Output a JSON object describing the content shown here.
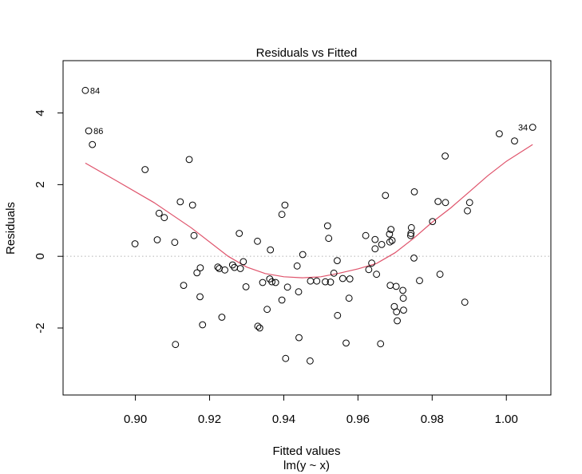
{
  "chart_data": {
    "type": "scatter",
    "title": "Residuals vs Fitted",
    "xlabel": "Fitted values",
    "subtitle": "lm(y ~ x)",
    "ylabel": "Residuals",
    "xlim": [
      0.8805,
      1.012
    ],
    "ylim": [
      -3.87,
      5.46
    ],
    "x_ticks": [
      0.9,
      0.92,
      0.94,
      0.96,
      0.98,
      1.0
    ],
    "x_tick_labels": [
      "0.90",
      "0.92",
      "0.94",
      "0.96",
      "0.98",
      "1.00"
    ],
    "y_ticks": [
      -2,
      0,
      2,
      4
    ],
    "y_tick_labels": [
      "-2",
      "0",
      "2",
      "4"
    ],
    "reference_line": {
      "y": 0,
      "style": "dotted",
      "color": "#c8c8c8"
    },
    "smooth_color": "#df536b",
    "point_color": "#000000",
    "points": [
      {
        "x": 0.8865,
        "y": 4.63,
        "label": "84"
      },
      {
        "x": 0.8874,
        "y": 3.5,
        "label": "86"
      },
      {
        "x": 1.0071,
        "y": 3.6,
        "label": "34"
      },
      {
        "x": 0.8884,
        "y": 3.12
      },
      {
        "x": 0.8999,
        "y": 0.35
      },
      {
        "x": 0.9026,
        "y": 2.42
      },
      {
        "x": 0.9059,
        "y": 0.46
      },
      {
        "x": 0.9064,
        "y": 1.2
      },
      {
        "x": 0.9078,
        "y": 1.08
      },
      {
        "x": 0.9106,
        "y": 0.39
      },
      {
        "x": 0.9108,
        "y": -2.46
      },
      {
        "x": 0.9121,
        "y": 1.52
      },
      {
        "x": 0.913,
        "y": -0.81
      },
      {
        "x": 0.9145,
        "y": 2.7
      },
      {
        "x": 0.9154,
        "y": 1.43
      },
      {
        "x": 0.9158,
        "y": 0.58
      },
      {
        "x": 0.9166,
        "y": -0.46
      },
      {
        "x": 0.9175,
        "y": -0.32
      },
      {
        "x": 0.9174,
        "y": -1.13
      },
      {
        "x": 0.9181,
        "y": -1.91
      },
      {
        "x": 0.9222,
        "y": -0.3
      },
      {
        "x": 0.9226,
        "y": -0.34
      },
      {
        "x": 0.9233,
        "y": -1.7
      },
      {
        "x": 0.9241,
        "y": -0.38
      },
      {
        "x": 0.9262,
        "y": -0.24
      },
      {
        "x": 0.9267,
        "y": -0.31
      },
      {
        "x": 0.928,
        "y": 0.64
      },
      {
        "x": 0.9283,
        "y": -0.34
      },
      {
        "x": 0.9291,
        "y": -0.15
      },
      {
        "x": 0.9298,
        "y": -0.85
      },
      {
        "x": 0.9329,
        "y": 0.42
      },
      {
        "x": 0.933,
        "y": -1.95
      },
      {
        "x": 0.9335,
        "y": -2.0
      },
      {
        "x": 0.9343,
        "y": -0.73
      },
      {
        "x": 0.9355,
        "y": -1.48
      },
      {
        "x": 0.9364,
        "y": 0.18
      },
      {
        "x": 0.9362,
        "y": -0.63
      },
      {
        "x": 0.9368,
        "y": -0.71
      },
      {
        "x": 0.9378,
        "y": -0.73
      },
      {
        "x": 0.9395,
        "y": 1.17
      },
      {
        "x": 0.9395,
        "y": -1.22
      },
      {
        "x": 0.9403,
        "y": 1.43
      },
      {
        "x": 0.9405,
        "y": -2.85
      },
      {
        "x": 0.941,
        "y": -0.86
      },
      {
        "x": 0.9436,
        "y": -0.27
      },
      {
        "x": 0.944,
        "y": -0.99
      },
      {
        "x": 0.9441,
        "y": -2.27
      },
      {
        "x": 0.9451,
        "y": 0.05
      },
      {
        "x": 0.9471,
        "y": -2.92
      },
      {
        "x": 0.9472,
        "y": -0.69
      },
      {
        "x": 0.9489,
        "y": -0.69
      },
      {
        "x": 0.9512,
        "y": -0.71
      },
      {
        "x": 0.9518,
        "y": 0.85
      },
      {
        "x": 0.9521,
        "y": 0.5
      },
      {
        "x": 0.9526,
        "y": -0.72
      },
      {
        "x": 0.9535,
        "y": -0.47
      },
      {
        "x": 0.9544,
        "y": -0.12
      },
      {
        "x": 0.9545,
        "y": -1.65
      },
      {
        "x": 0.9559,
        "y": -0.62
      },
      {
        "x": 0.9568,
        "y": -2.42
      },
      {
        "x": 0.9576,
        "y": -1.17
      },
      {
        "x": 0.9578,
        "y": -0.63
      },
      {
        "x": 0.9621,
        "y": 0.58
      },
      {
        "x": 0.9629,
        "y": -0.37
      },
      {
        "x": 0.9637,
        "y": -0.19
      },
      {
        "x": 0.9646,
        "y": 0.47
      },
      {
        "x": 0.9646,
        "y": 0.21
      },
      {
        "x": 0.965,
        "y": -0.5
      },
      {
        "x": 0.9661,
        "y": -2.44
      },
      {
        "x": 0.9664,
        "y": 0.33
      },
      {
        "x": 0.9674,
        "y": 1.7
      },
      {
        "x": 0.9685,
        "y": 0.62
      },
      {
        "x": 0.9686,
        "y": 0.4
      },
      {
        "x": 0.9687,
        "y": -0.81
      },
      {
        "x": 0.9689,
        "y": 0.75
      },
      {
        "x": 0.9692,
        "y": 0.44
      },
      {
        "x": 0.9698,
        "y": -1.4
      },
      {
        "x": 0.9703,
        "y": -0.84
      },
      {
        "x": 0.9704,
        "y": -1.55
      },
      {
        "x": 0.9706,
        "y": -1.8
      },
      {
        "x": 0.9721,
        "y": -0.95
      },
      {
        "x": 0.9722,
        "y": -1.17
      },
      {
        "x": 0.9723,
        "y": -1.5
      },
      {
        "x": 0.9742,
        "y": 0.58
      },
      {
        "x": 0.9743,
        "y": 0.64
      },
      {
        "x": 0.9744,
        "y": 0.8
      },
      {
        "x": 0.9751,
        "y": -0.05
      },
      {
        "x": 0.9752,
        "y": 1.8
      },
      {
        "x": 0.9766,
        "y": -0.68
      },
      {
        "x": 0.9801,
        "y": 0.97
      },
      {
        "x": 0.9816,
        "y": 1.53
      },
      {
        "x": 0.9821,
        "y": -0.5
      },
      {
        "x": 0.9835,
        "y": 2.8
      },
      {
        "x": 0.9836,
        "y": 1.5
      },
      {
        "x": 0.9888,
        "y": -1.28
      },
      {
        "x": 0.9895,
        "y": 1.27
      },
      {
        "x": 0.9901,
        "y": 1.5
      },
      {
        "x": 0.9981,
        "y": 3.42
      },
      {
        "x": 1.0022,
        "y": 3.22
      }
    ],
    "smooth_line": {
      "x": [
        0.8865,
        0.895,
        0.905,
        0.915,
        0.925,
        0.93,
        0.935,
        0.94,
        0.945,
        0.95,
        0.955,
        0.96,
        0.965,
        0.97,
        0.975,
        0.98,
        0.985,
        0.99,
        0.995,
        1.0,
        1.0071
      ],
      "y": [
        2.6,
        2.1,
        1.5,
        0.8,
        0.0,
        -0.3,
        -0.48,
        -0.57,
        -0.6,
        -0.57,
        -0.47,
        -0.35,
        -0.2,
        0.1,
        0.5,
        0.95,
        1.35,
        1.8,
        2.25,
        2.65,
        3.12
      ]
    }
  }
}
